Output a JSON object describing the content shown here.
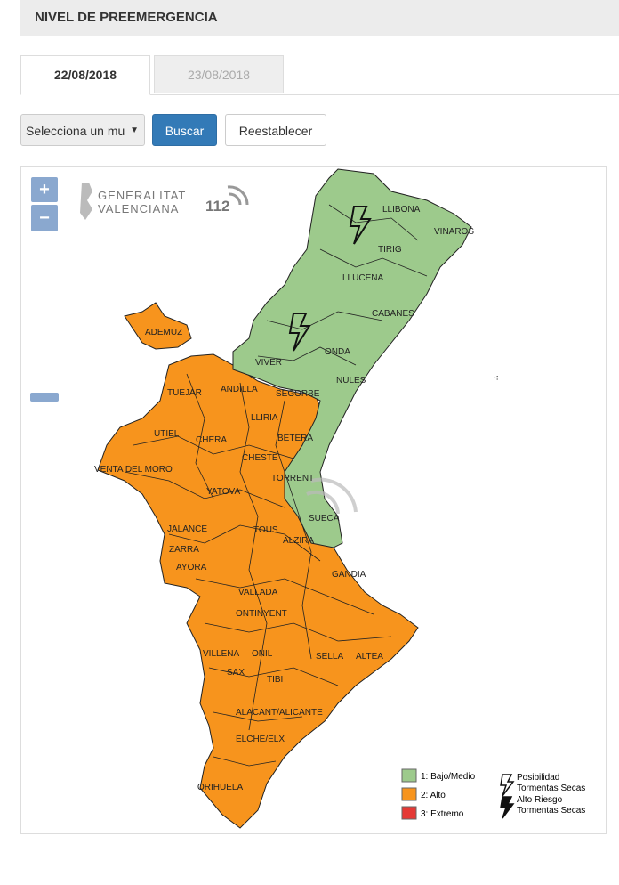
{
  "header": {
    "title": "NIVEL DE PREEMERGENCIA"
  },
  "tabs": [
    {
      "label": "22/08/2018",
      "active": true
    },
    {
      "label": "23/08/2018",
      "active": false
    }
  ],
  "controls": {
    "select": "Selecciona un mu",
    "search": "Buscar",
    "reset": "Reestablecer"
  },
  "map": {
    "zoom_in": "+",
    "zoom_out": "−",
    "logo": {
      "line1": "GENERALITAT",
      "line2": "VALENCIANA",
      "phone": "112"
    },
    "places": [
      "LLIBONA",
      "VINAROS",
      "TIRIG",
      "LLUCENA",
      "CABANES",
      "ONDA",
      "VIVER",
      "NULES",
      "ADEMUZ",
      "TUEJAR",
      "ANDILLA",
      "SEGORBE",
      "LLIRIA",
      "UTIEL",
      "CHERA",
      "BETERA",
      "CHESTE",
      "VENTA DEL MORO",
      "YATOVA",
      "TORRENT",
      "SUECA",
      "JALANCE",
      "ZARRA",
      "AYORA",
      "TOUS",
      "ALZIRA",
      "GANDIA",
      "VALLADA",
      "ONTINYENT",
      "VILLENA",
      "ONIL",
      "SELLA",
      "ALTEA",
      "SAX",
      "TIBI",
      "ALACANT/ALICANTE",
      "ELCHE/ELX",
      "ORIHUELA"
    ],
    "legend": {
      "levels": [
        {
          "label": "1: Bajo/Medio",
          "color": "#9dca8c"
        },
        {
          "label": "2: Alto",
          "color": "#f7941d"
        },
        {
          "label": "3: Extremo",
          "color": "#e53935"
        }
      ],
      "storms": [
        {
          "lines": [
            "Posibilidad",
            "Tormentas Secas"
          ]
        },
        {
          "lines": [
            "Alto Riesgo",
            "Tormentas Secas"
          ]
        }
      ]
    }
  }
}
